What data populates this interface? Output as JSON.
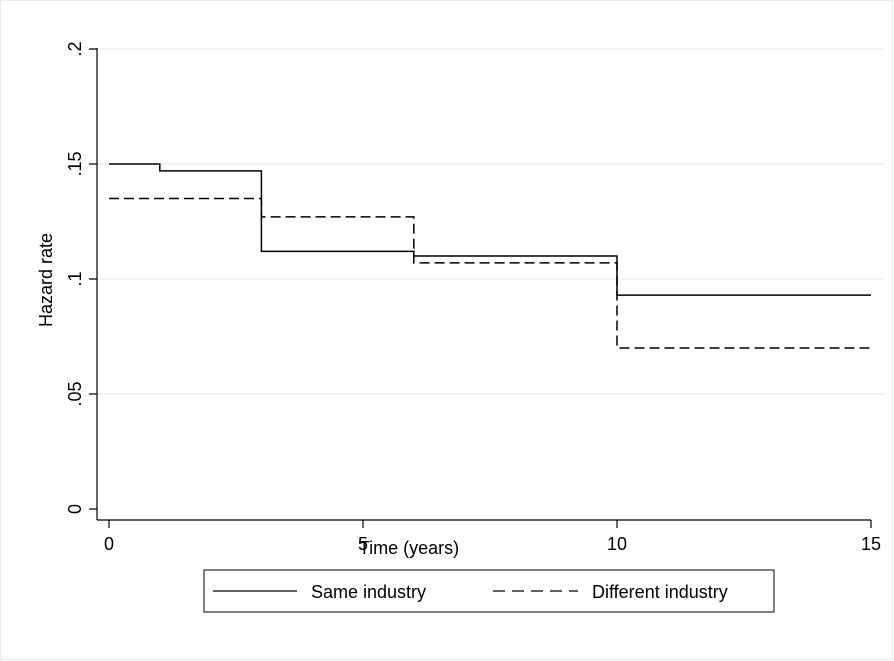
{
  "chart_data": {
    "type": "line",
    "xlabel": "Time (years)",
    "ylabel": "Hazard rate",
    "xlim": [
      0,
      15
    ],
    "ylim": [
      0,
      0.2
    ],
    "xticks": [
      0,
      5,
      10,
      15
    ],
    "xtick_labels": [
      "0",
      "5",
      "10",
      "15"
    ],
    "yticks": [
      0,
      0.05,
      0.1,
      0.15,
      0.2
    ],
    "ytick_labels": [
      "0",
      ".05",
      ".1",
      ".15",
      ".2"
    ],
    "grid": "horizontal",
    "legend_position": "bottom",
    "step": true,
    "series": [
      {
        "name": "Same industry",
        "style": "solid",
        "color": "#000000",
        "x": [
          0,
          1,
          3,
          6,
          10,
          15
        ],
        "y": [
          0.15,
          0.147,
          0.112,
          0.11,
          0.093,
          0.093
        ]
      },
      {
        "name": "Different industry",
        "style": "dashed",
        "color": "#000000",
        "x": [
          0,
          1,
          3,
          6,
          10,
          15
        ],
        "y": [
          0.135,
          0.135,
          0.127,
          0.107,
          0.07,
          0.07
        ]
      }
    ]
  }
}
